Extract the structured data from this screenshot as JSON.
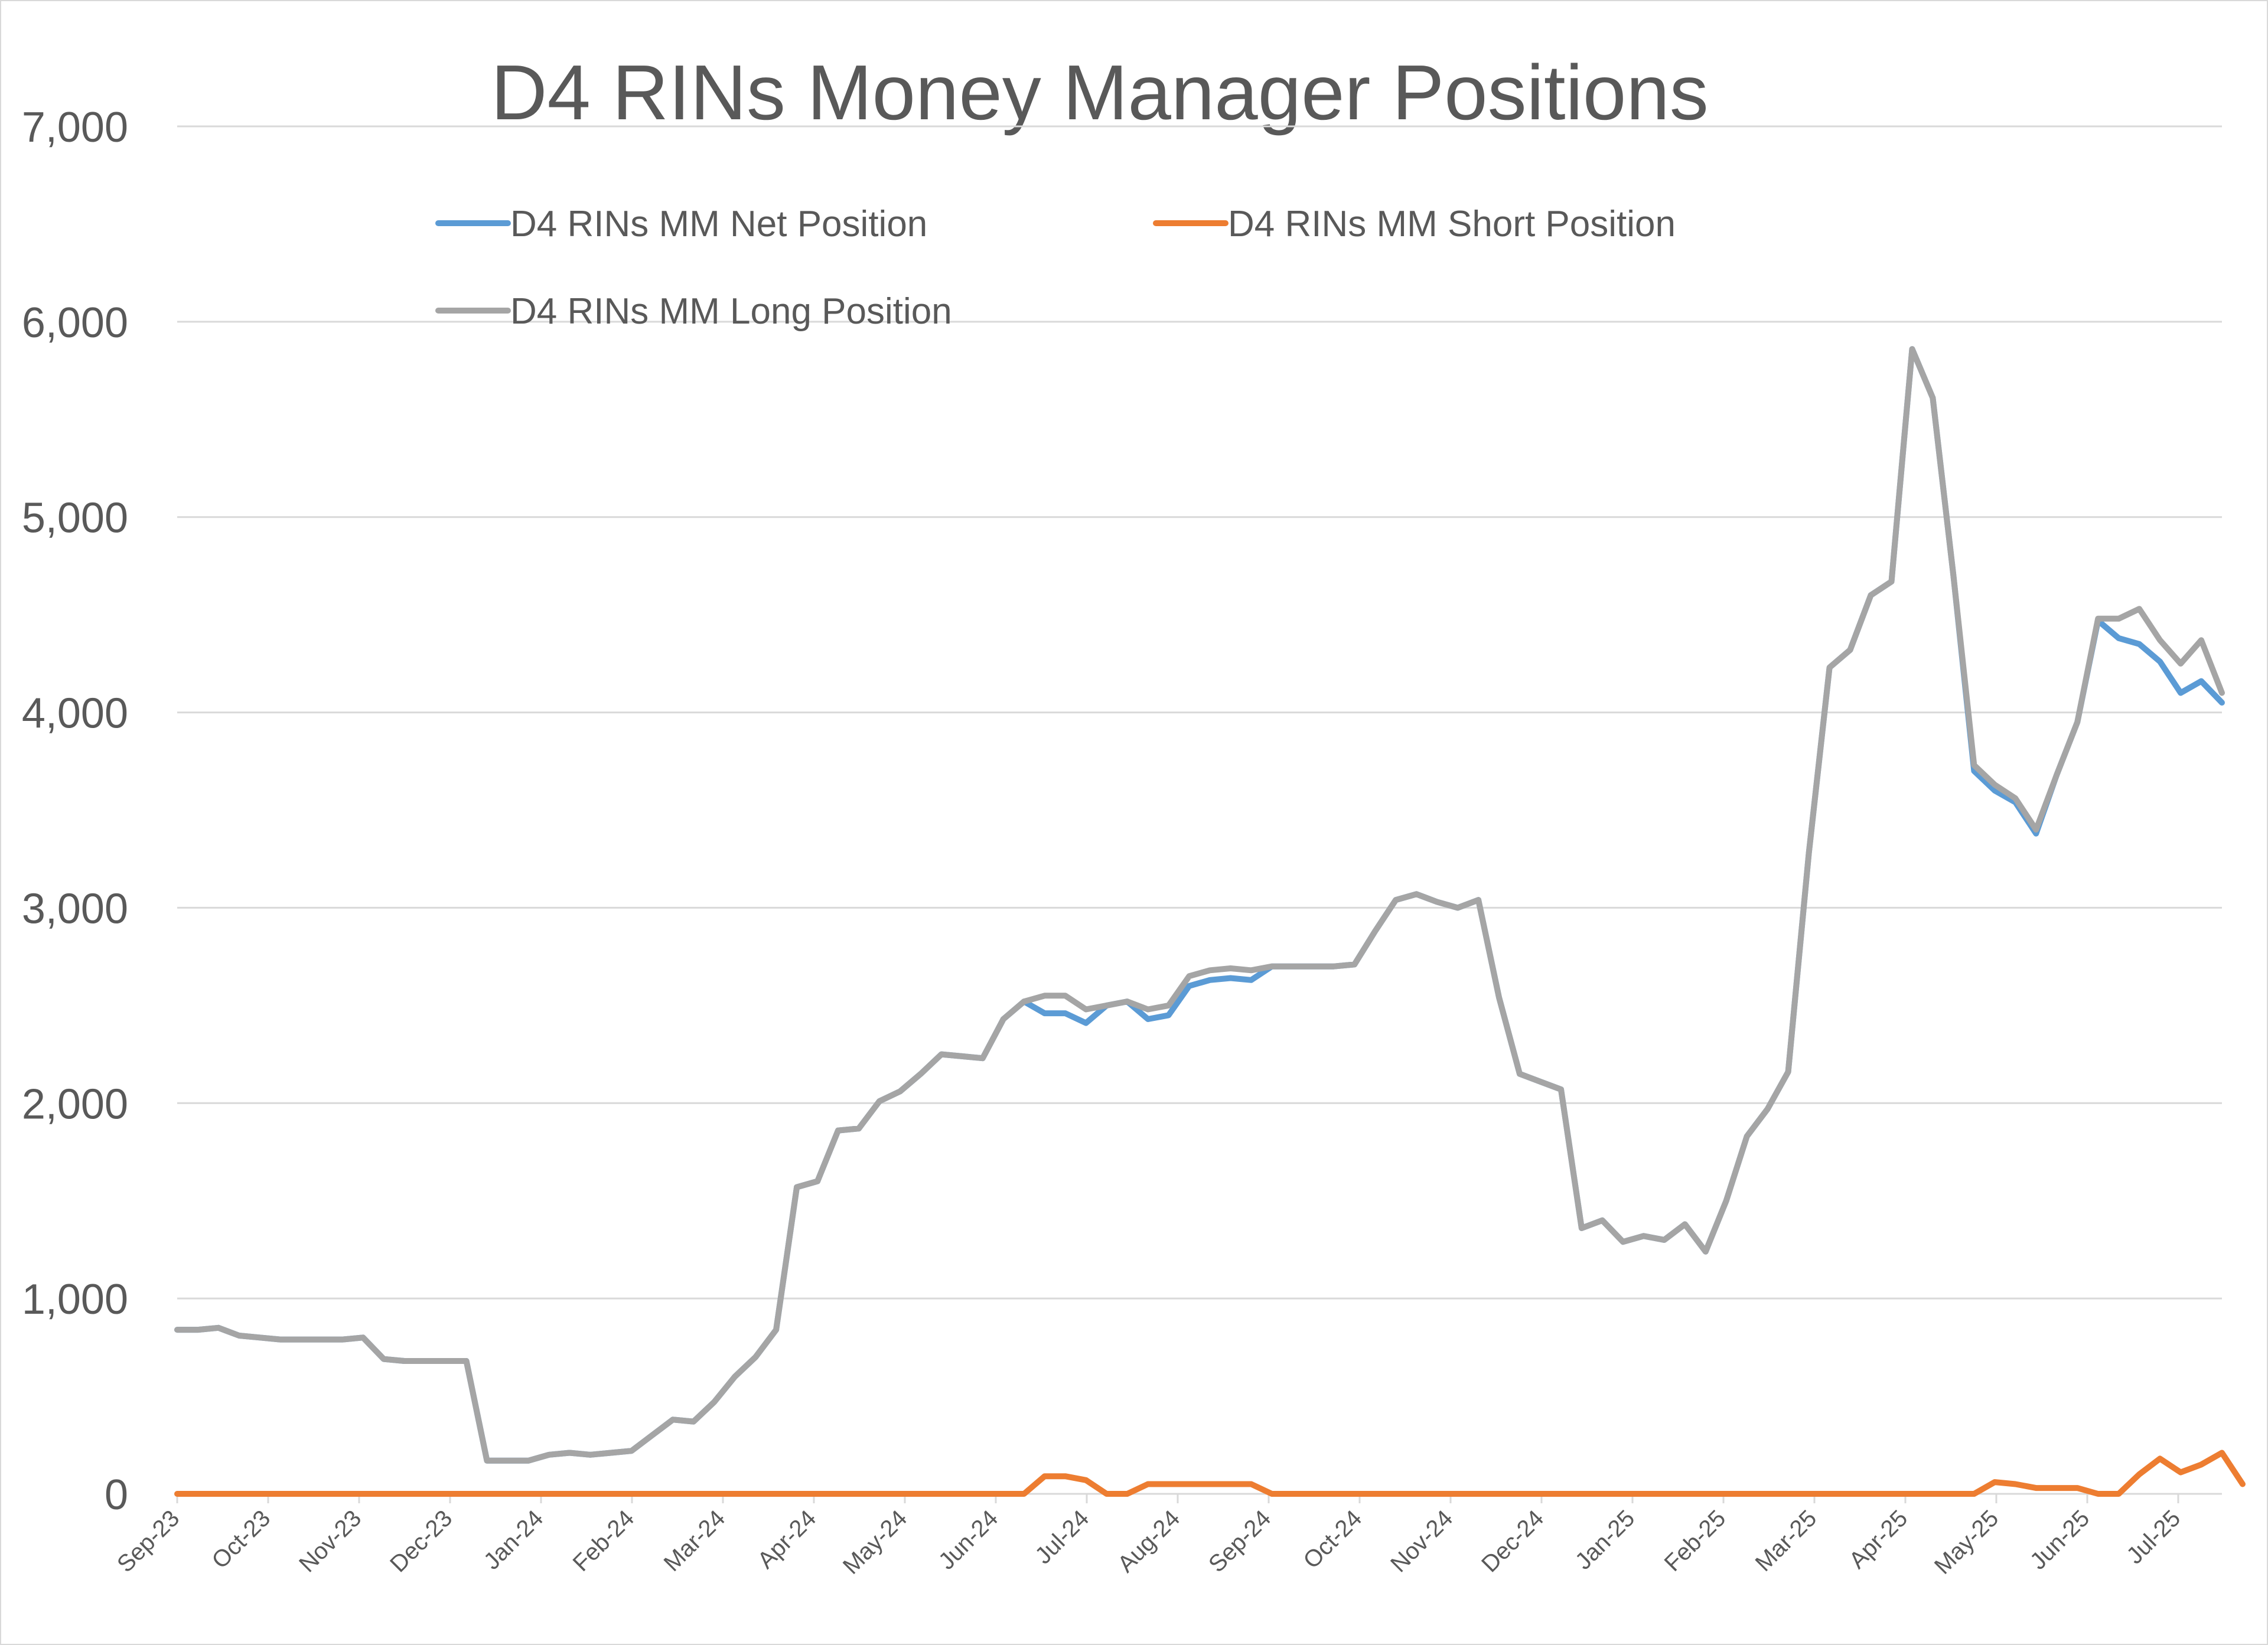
{
  "chart_data": {
    "type": "line",
    "title": "D4 RINs Money Manager Positions",
    "xlabel": "",
    "ylabel": "",
    "ylim": [
      0,
      7000
    ],
    "yticks": [
      0,
      1000,
      2000,
      3000,
      4000,
      5000,
      6000,
      7000
    ],
    "ytick_labels": [
      "0",
      "1,000",
      "2,000",
      "3,000",
      "4,000",
      "5,000",
      "6,000",
      "7,000"
    ],
    "x_tick_labels": [
      "Sep-23",
      "Oct-23",
      "Nov-23",
      "Dec-23",
      "Jan-24",
      "Feb-24",
      "Mar-24",
      "Apr-24",
      "May-24",
      "Jun-24",
      "Jul-24",
      "Aug-24",
      "Sep-24",
      "Oct-24",
      "Nov-24",
      "Dec-24",
      "Jan-25",
      "Feb-25",
      "Mar-25",
      "Apr-25",
      "May-25",
      "Jun-25",
      "Jul-25"
    ],
    "grid": true,
    "legend_position": "top",
    "series": [
      {
        "name": "D4 RINs MM Net Position",
        "color": "#5b9bd5",
        "values": [
          840,
          840,
          850,
          810,
          800,
          790,
          790,
          790,
          790,
          800,
          690,
          680,
          680,
          680,
          680,
          170,
          170,
          170,
          200,
          210,
          200,
          210,
          220,
          300,
          380,
          370,
          470,
          600,
          700,
          840,
          1570,
          1600,
          1860,
          1870,
          2010,
          2060,
          2150,
          2250,
          2240,
          2230,
          2430,
          2520,
          2460,
          2460,
          2410,
          2500,
          2520,
          2430,
          2450,
          2600,
          2630,
          2640,
          2630,
          2700,
          2700,
          2700,
          2700,
          2710,
          2880,
          3040,
          3070,
          3030,
          3000,
          3040,
          2540,
          2150,
          2110,
          2070,
          1360,
          1400,
          1290,
          1320,
          1300,
          1380,
          1240,
          1500,
          1830,
          1970,
          2160,
          3280,
          4230,
          4320,
          4600,
          4670,
          5860,
          5610,
          4700,
          3700,
          3600,
          3540,
          3380,
          3680,
          3950,
          4470,
          4380,
          4350,
          4260,
          4100,
          4160,
          4050
        ]
      },
      {
        "name": "D4 RINs MM Short Position",
        "color": "#ed7d31",
        "values": [
          0,
          0,
          0,
          0,
          0,
          0,
          0,
          0,
          0,
          0,
          0,
          0,
          0,
          0,
          0,
          0,
          0,
          0,
          0,
          0,
          0,
          0,
          0,
          0,
          0,
          0,
          0,
          0,
          0,
          0,
          0,
          0,
          0,
          0,
          0,
          0,
          0,
          0,
          0,
          0,
          0,
          0,
          90,
          90,
          70,
          0,
          0,
          50,
          50,
          50,
          50,
          50,
          50,
          0,
          0,
          0,
          0,
          0,
          0,
          0,
          0,
          0,
          0,
          0,
          0,
          0,
          0,
          0,
          0,
          0,
          0,
          0,
          0,
          0,
          0,
          0,
          0,
          0,
          0,
          0,
          0,
          0,
          0,
          0,
          0,
          0,
          0,
          0,
          60,
          50,
          30,
          30,
          30,
          0,
          0,
          100,
          180,
          110,
          150,
          210,
          50
        ]
      },
      {
        "name": "D4 RINs MM Long Position",
        "color": "#a5a5a5",
        "values": [
          840,
          840,
          850,
          810,
          800,
          790,
          790,
          790,
          790,
          800,
          690,
          680,
          680,
          680,
          680,
          170,
          170,
          170,
          200,
          210,
          200,
          210,
          220,
          300,
          380,
          370,
          470,
          600,
          700,
          840,
          1570,
          1600,
          1860,
          1870,
          2010,
          2060,
          2150,
          2250,
          2240,
          2230,
          2430,
          2520,
          2550,
          2550,
          2480,
          2500,
          2520,
          2480,
          2500,
          2650,
          2680,
          2690,
          2680,
          2700,
          2700,
          2700,
          2700,
          2710,
          2880,
          3040,
          3070,
          3030,
          3000,
          3040,
          2540,
          2150,
          2110,
          2070,
          1360,
          1400,
          1290,
          1320,
          1300,
          1380,
          1240,
          1500,
          1830,
          1970,
          2160,
          3280,
          4230,
          4320,
          4600,
          4670,
          5860,
          5610,
          4700,
          3730,
          3630,
          3560,
          3400,
          3680,
          3950,
          4480,
          4480,
          4530,
          4370,
          4250,
          4370,
          4100
        ]
      }
    ]
  }
}
